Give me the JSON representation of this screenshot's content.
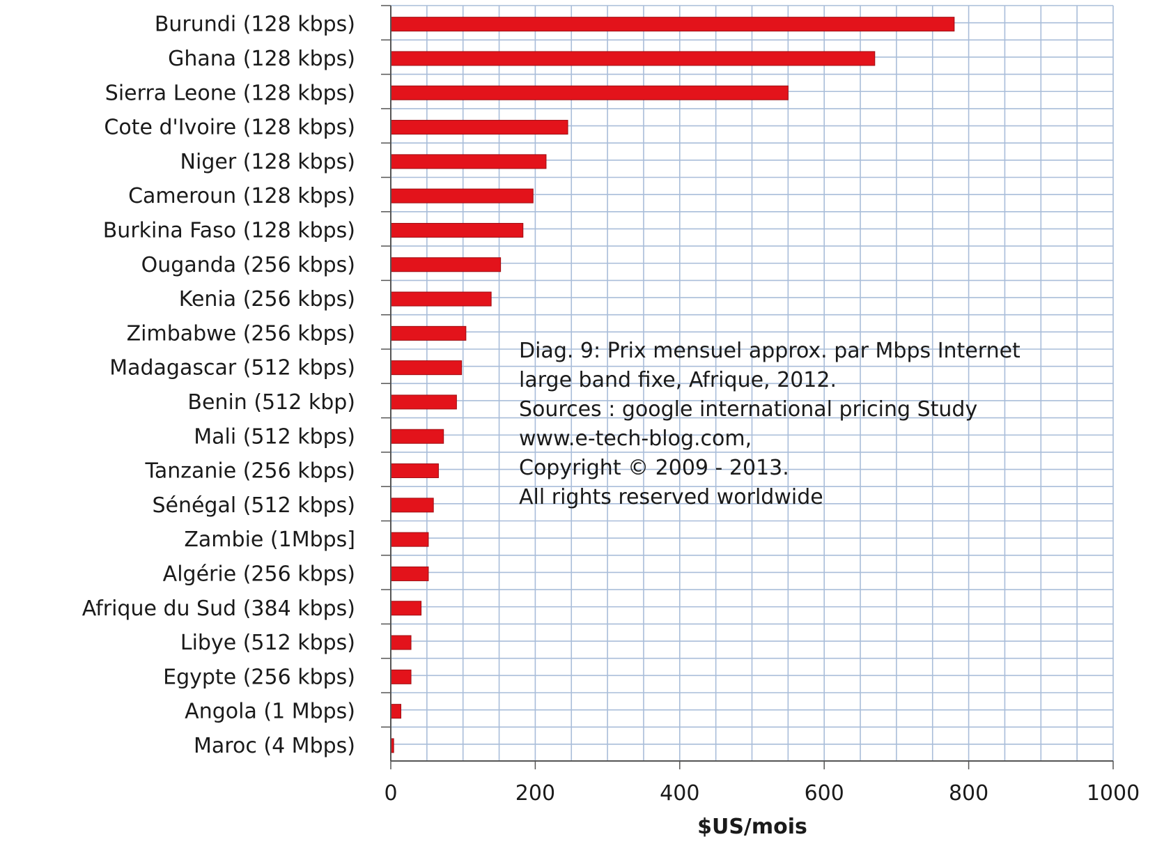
{
  "chart_data": {
    "type": "bar",
    "orientation": "horizontal",
    "categories": [
      "Burundi (128 kbps)",
      "Ghana (128 kbps)",
      "Sierra Leone (128 kbps)",
      "Cote d'Ivoire (128 kbps)",
      "Niger (128 kbps)",
      "Cameroun (128 kbps)",
      "Burkina Faso  (128 kbps)",
      "Ouganda (256 kbps)",
      "Kenia (256 kbps)",
      "Zimbabwe  (256 kbps)",
      "Madagascar  (512 kbps)",
      "Benin (512 kbp)",
      "Mali (512 kbps)",
      "Tanzanie (256 kbps)",
      "Sénégal (512 kbps)",
      "Zambie (1Mbps]",
      "Algérie (256 kbps)",
      "Afrique du Sud (384 kbps)",
      "Libye (512 kbps)",
      "Egypte (256 kbps)",
      "Angola (1 Mbps)",
      "Maroc (4 Mbps)"
    ],
    "values": [
      780,
      670,
      550,
      245,
      215,
      197,
      183,
      152,
      139,
      104,
      98,
      91,
      73,
      66,
      59,
      52,
      52,
      42,
      28,
      28,
      14,
      4
    ],
    "bar_color": "#e3131b",
    "xlabel": "$US/mois",
    "xlim": [
      0,
      1000
    ],
    "xticks": [
      0,
      200,
      400,
      600,
      800,
      1000
    ],
    "minor_grid_step": 50,
    "grid": true,
    "grid_color": "#a9bdd9",
    "annotation_lines": [
      "Diag. 9: Prix mensuel approx. par Mbps Internet",
      "large band fixe, Afrique, 2012.",
      "Sources : google international  pricing Study",
      "www.e-tech-blog.com,",
      "Copyright © 2009 - 2013.",
      "All rights  reserved worldwide"
    ]
  }
}
